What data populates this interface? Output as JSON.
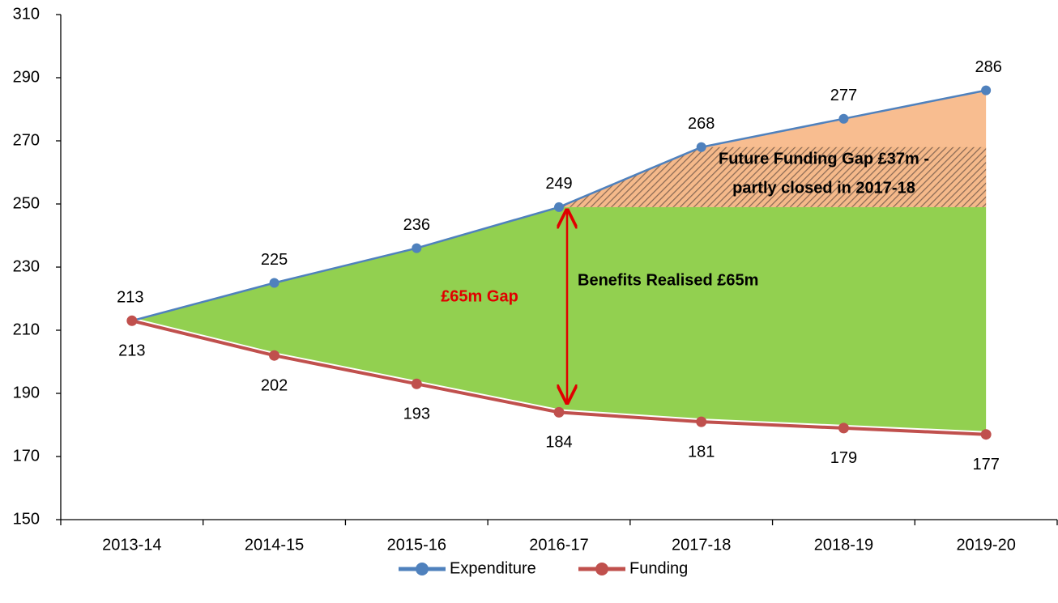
{
  "chart_data": {
    "type": "line",
    "categories": [
      "2013-14",
      "2014-15",
      "2015-16",
      "2016-17",
      "2017-18",
      "2018-19",
      "2019-20"
    ],
    "series": [
      {
        "name": "Expenditure",
        "color": "#4f81bd",
        "values": [
          213,
          225,
          236,
          249,
          268,
          277,
          286
        ]
      },
      {
        "name": "Funding",
        "color": "#c0504d",
        "values": [
          213,
          202,
          193,
          184,
          181,
          179,
          177
        ]
      }
    ],
    "ylim": [
      150,
      310
    ],
    "yticks": [
      150,
      170,
      190,
      210,
      230,
      250,
      270,
      290,
      310
    ],
    "annotations": {
      "gap": "£65m Gap",
      "benefits": "Benefits Realised £65m",
      "future": [
        "Future Funding Gap £37m -",
        "partly closed in 2017-18"
      ]
    },
    "legend": "bottom"
  }
}
